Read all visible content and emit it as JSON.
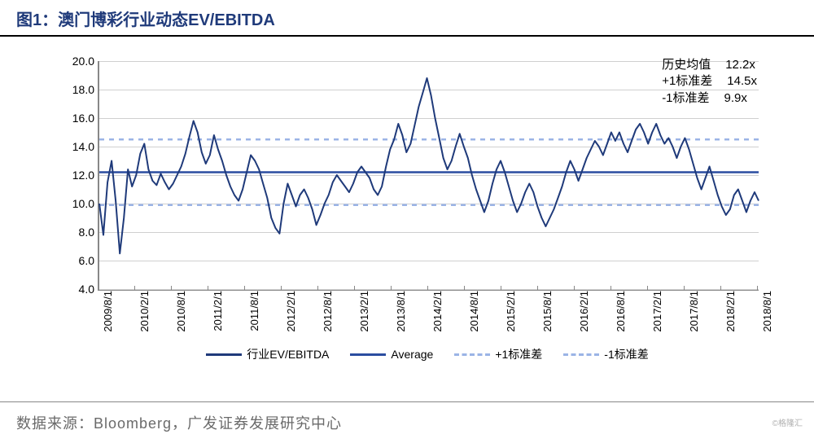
{
  "title": "图1：澳门博彩行业动态EV/EBITDA",
  "footer": "数据来源：Bloomberg，广发证券发展研究中心",
  "watermark": "©格隆汇",
  "stats": {
    "rows": [
      {
        "label": "历史均值",
        "value": "12.2x"
      },
      {
        "label": "+1标准差",
        "value": "14.5x"
      },
      {
        "label": "-1标准差",
        "value": "9.9x"
      }
    ]
  },
  "chart": {
    "type": "line",
    "background": "#ffffff",
    "grid_color": "#d0d0d0",
    "axis_color": "#888888",
    "text_color": "#000000",
    "title_color": "#1f3a7a",
    "y": {
      "min": 4.0,
      "max": 20.0,
      "step": 2.0,
      "decimals": 1,
      "fontsize": 14
    },
    "x": {
      "labels": [
        "2009/8/1",
        "2010/2/1",
        "2010/8/1",
        "2011/2/1",
        "2011/8/1",
        "2012/2/1",
        "2012/8/1",
        "2013/2/1",
        "2013/8/1",
        "2014/2/1",
        "2014/8/1",
        "2015/2/1",
        "2015/8/1",
        "2016/2/1",
        "2016/8/1",
        "2017/2/1",
        "2017/8/1",
        "2018/2/1",
        "2018/8/1"
      ],
      "fontsize": 13,
      "rotation": -90
    },
    "reference_lines": {
      "average": {
        "value": 12.2,
        "color": "#2b4da0",
        "width": 2.5,
        "dash": "solid"
      },
      "plus1sd": {
        "value": 14.5,
        "color": "#9bb4e6",
        "width": 2.5,
        "dash": "6,6"
      },
      "minus1sd": {
        "value": 9.9,
        "color": "#9bb4e6",
        "width": 2.5,
        "dash": "6,6"
      }
    },
    "series": {
      "name": "行业EV/EBITDA",
      "color": "#1f3a7a",
      "width": 2,
      "values": [
        10.0,
        7.8,
        11.5,
        13.0,
        10.2,
        6.5,
        9.0,
        12.4,
        11.2,
        12.0,
        13.5,
        14.2,
        12.4,
        11.6,
        11.3,
        12.1,
        11.5,
        11.0,
        11.4,
        12.0,
        12.6,
        13.5,
        14.7,
        15.8,
        15.0,
        13.6,
        12.8,
        13.4,
        14.8,
        13.8,
        13.0,
        12.0,
        11.2,
        10.6,
        10.2,
        11.0,
        12.2,
        13.4,
        13.0,
        12.4,
        11.4,
        10.4,
        9.0,
        8.3,
        7.9,
        10.0,
        11.4,
        10.6,
        9.8,
        10.6,
        11.0,
        10.4,
        9.6,
        8.5,
        9.2,
        10.0,
        10.6,
        11.5,
        12.0,
        11.6,
        11.2,
        10.8,
        11.4,
        12.2,
        12.6,
        12.2,
        11.8,
        11.0,
        10.6,
        11.2,
        12.6,
        13.8,
        14.5,
        15.6,
        14.8,
        13.6,
        14.2,
        15.5,
        16.8,
        17.8,
        18.8,
        17.6,
        16.0,
        14.6,
        13.2,
        12.4,
        13.0,
        14.0,
        14.9,
        14.0,
        13.2,
        12.0,
        11.0,
        10.2,
        9.4,
        10.2,
        11.4,
        12.4,
        13.0,
        12.2,
        11.2,
        10.2,
        9.4,
        10.0,
        10.8,
        11.4,
        10.8,
        9.8,
        9.0,
        8.4,
        9.0,
        9.6,
        10.4,
        11.2,
        12.2,
        13.0,
        12.4,
        11.6,
        12.4,
        13.2,
        13.8,
        14.4,
        14.0,
        13.4,
        14.2,
        15.0,
        14.4,
        15.0,
        14.2,
        13.6,
        14.4,
        15.2,
        15.6,
        15.0,
        14.2,
        15.0,
        15.6,
        14.8,
        14.2,
        14.6,
        14.0,
        13.2,
        14.0,
        14.6,
        13.8,
        12.8,
        11.8,
        11.0,
        11.8,
        12.6,
        11.6,
        10.6,
        9.8,
        9.2,
        9.6,
        10.6,
        11.0,
        10.2,
        9.4,
        10.2,
        10.8,
        10.2
      ]
    },
    "legend": [
      {
        "label": "行业EV/EBITDA",
        "color": "#1f3a7a",
        "width": 3,
        "dash": "solid"
      },
      {
        "label": "Average",
        "color": "#2b4da0",
        "width": 3,
        "dash": "solid"
      },
      {
        "label": "+1标准差",
        "color": "#9bb4e6",
        "width": 3,
        "dash": "6,5"
      },
      {
        "label": "-1标准差",
        "color": "#9bb4e6",
        "width": 3,
        "dash": "6,5"
      }
    ]
  }
}
